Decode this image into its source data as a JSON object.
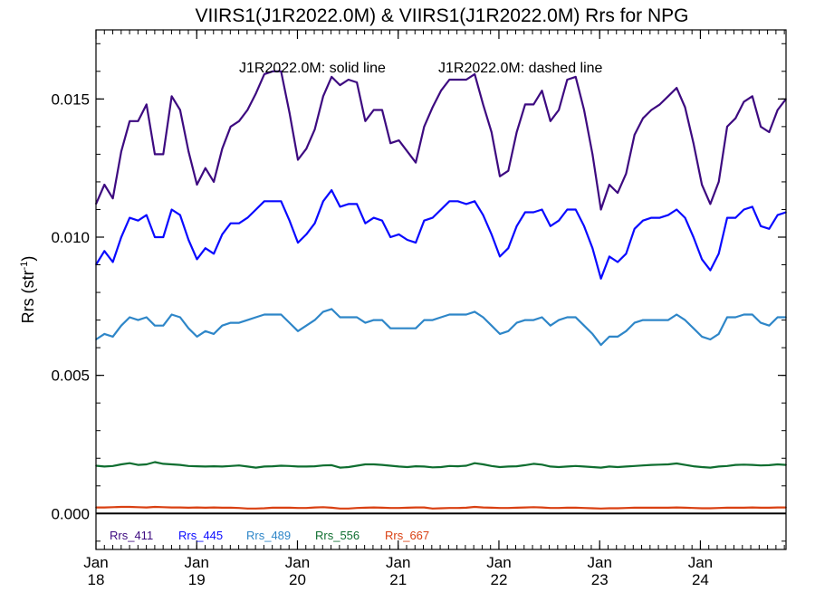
{
  "chart_data": {
    "type": "line",
    "title": "VIIRS1(J1R2022.0M) & VIIRS1(J1R2022.0M)  Rrs for NPG",
    "annotation_solid": "J1R2022.0M: solid line",
    "annotation_dashed": "J1R2022.0M: dashed line",
    "ylabel": "Rrs (str",
    "ylabel_sup": "-1",
    "ylabel_close": ")",
    "ylim": [
      -0.0013,
      0.0175
    ],
    "xlim": [
      2018.0,
      2024.85
    ],
    "yticks": [
      0.0,
      0.005,
      0.01,
      0.015
    ],
    "ytick_labels": [
      "0.000",
      "0.005",
      "0.010",
      "0.015"
    ],
    "xticks": [
      {
        "x": 2018,
        "month": "Jan",
        "year": "18"
      },
      {
        "x": 2019,
        "month": "Jan",
        "year": "19"
      },
      {
        "x": 2020,
        "month": "Jan",
        "year": "20"
      },
      {
        "x": 2021,
        "month": "Jan",
        "year": "21"
      },
      {
        "x": 2022,
        "month": "Jan",
        "year": "22"
      },
      {
        "x": 2023,
        "month": "Jan",
        "year": "23"
      },
      {
        "x": 2024,
        "month": "Jan",
        "year": "24"
      }
    ],
    "reference_line": 0.0,
    "grid": false,
    "legend_position": "bottom-left",
    "series": [
      {
        "name": "Rrs_411",
        "color": "#3d0a80",
        "values": [
          0.0112,
          0.0119,
          0.0114,
          0.0131,
          0.0142,
          0.0142,
          0.0148,
          0.013,
          0.013,
          0.0151,
          0.0146,
          0.0131,
          0.0119,
          0.0125,
          0.012,
          0.0132,
          0.014,
          0.0142,
          0.0146,
          0.0152,
          0.0159,
          0.016,
          0.016,
          0.0145,
          0.0128,
          0.0132,
          0.0139,
          0.0151,
          0.0158,
          0.0155,
          0.0157,
          0.0156,
          0.0142,
          0.0146,
          0.0146,
          0.0134,
          0.0135,
          0.0131,
          0.0127,
          0.014,
          0.0147,
          0.0153,
          0.0157,
          0.0157,
          0.0157,
          0.0159,
          0.0148,
          0.0138,
          0.0122,
          0.0124,
          0.0138,
          0.0148,
          0.0148,
          0.0153,
          0.0142,
          0.0146,
          0.0157,
          0.0158,
          0.0146,
          0.013,
          0.011,
          0.0119,
          0.0116,
          0.0123,
          0.0137,
          0.0143,
          0.0146,
          0.0148,
          0.0151,
          0.0154,
          0.0147,
          0.0134,
          0.0119,
          0.0112,
          0.012,
          0.014,
          0.0143,
          0.0149,
          0.0151,
          0.014,
          0.0138,
          0.0146,
          0.015
        ]
      },
      {
        "name": "Rrs_445",
        "color": "#0a0aff",
        "values": [
          0.009,
          0.0095,
          0.0091,
          0.01,
          0.0107,
          0.0106,
          0.0108,
          0.01,
          0.01,
          0.011,
          0.0108,
          0.0099,
          0.0092,
          0.0096,
          0.0094,
          0.0101,
          0.0105,
          0.0105,
          0.0107,
          0.011,
          0.0113,
          0.0113,
          0.0113,
          0.0106,
          0.0098,
          0.0101,
          0.0105,
          0.0113,
          0.0117,
          0.0111,
          0.0112,
          0.0112,
          0.0105,
          0.0107,
          0.0106,
          0.01,
          0.0101,
          0.0099,
          0.0098,
          0.0106,
          0.0107,
          0.011,
          0.0113,
          0.0113,
          0.0112,
          0.0113,
          0.0108,
          0.0101,
          0.0093,
          0.0096,
          0.0104,
          0.0109,
          0.0109,
          0.011,
          0.0104,
          0.0106,
          0.011,
          0.011,
          0.0104,
          0.0096,
          0.0085,
          0.0093,
          0.0091,
          0.0094,
          0.0103,
          0.0106,
          0.0107,
          0.0107,
          0.0108,
          0.011,
          0.0107,
          0.01,
          0.0092,
          0.0088,
          0.0094,
          0.0107,
          0.0107,
          0.011,
          0.0111,
          0.0104,
          0.0103,
          0.0108,
          0.0109
        ]
      },
      {
        "name": "Rrs_489",
        "color": "#2e86c8",
        "values": [
          0.0063,
          0.0065,
          0.0064,
          0.0068,
          0.0071,
          0.007,
          0.0071,
          0.0068,
          0.0068,
          0.0072,
          0.0071,
          0.0067,
          0.0064,
          0.0066,
          0.0065,
          0.0068,
          0.0069,
          0.0069,
          0.007,
          0.0071,
          0.0072,
          0.0072,
          0.0072,
          0.0069,
          0.0066,
          0.0068,
          0.007,
          0.0073,
          0.0074,
          0.0071,
          0.0071,
          0.0071,
          0.0069,
          0.007,
          0.007,
          0.0067,
          0.0067,
          0.0067,
          0.0067,
          0.007,
          0.007,
          0.0071,
          0.0072,
          0.0072,
          0.0072,
          0.0073,
          0.0071,
          0.0068,
          0.0065,
          0.0066,
          0.0069,
          0.007,
          0.007,
          0.0071,
          0.0068,
          0.007,
          0.0071,
          0.0071,
          0.0068,
          0.0065,
          0.0061,
          0.0064,
          0.0064,
          0.0066,
          0.0069,
          0.007,
          0.007,
          0.007,
          0.007,
          0.0072,
          0.007,
          0.0067,
          0.0064,
          0.0063,
          0.0065,
          0.0071,
          0.0071,
          0.0072,
          0.0072,
          0.0069,
          0.0068,
          0.0071,
          0.0071
        ]
      },
      {
        "name": "Rrs_556",
        "color": "#0f6e30",
        "values": [
          0.00173,
          0.0017,
          0.00172,
          0.00178,
          0.00182,
          0.00176,
          0.00178,
          0.00186,
          0.0018,
          0.00178,
          0.00176,
          0.00172,
          0.00171,
          0.0017,
          0.00171,
          0.0017,
          0.00172,
          0.00174,
          0.0017,
          0.00166,
          0.0017,
          0.00171,
          0.00173,
          0.00172,
          0.0017,
          0.0017,
          0.00171,
          0.00174,
          0.00175,
          0.00166,
          0.00168,
          0.00173,
          0.00178,
          0.00178,
          0.00176,
          0.00173,
          0.0017,
          0.00168,
          0.00171,
          0.0017,
          0.00167,
          0.00168,
          0.00172,
          0.00171,
          0.00173,
          0.00182,
          0.00178,
          0.00172,
          0.00168,
          0.0017,
          0.00171,
          0.00175,
          0.0018,
          0.00177,
          0.0017,
          0.00168,
          0.0017,
          0.00172,
          0.0017,
          0.00168,
          0.00166,
          0.0017,
          0.00168,
          0.0017,
          0.00172,
          0.00174,
          0.00176,
          0.00177,
          0.00178,
          0.00181,
          0.00176,
          0.00171,
          0.00168,
          0.00166,
          0.0017,
          0.00172,
          0.00176,
          0.00177,
          0.00176,
          0.00174,
          0.00175,
          0.00178,
          0.00176
        ]
      },
      {
        "name": "Rrs_667",
        "color": "#d94012",
        "values": [
          0.00022,
          0.00022,
          0.00023,
          0.00024,
          0.00024,
          0.00023,
          0.00022,
          0.00024,
          0.00023,
          0.00022,
          0.00022,
          0.00021,
          0.00022,
          0.00021,
          0.00022,
          0.00021,
          0.00021,
          0.0002,
          0.00018,
          0.00018,
          0.00019,
          0.00021,
          0.00021,
          0.00021,
          0.0002,
          0.0002,
          0.00022,
          0.00023,
          0.00021,
          0.00018,
          0.00018,
          0.0002,
          0.00021,
          0.00022,
          0.00021,
          0.0002,
          0.0002,
          0.00021,
          0.00022,
          0.00022,
          0.00018,
          0.00019,
          0.0002,
          0.0002,
          0.00021,
          0.00024,
          0.00022,
          0.00021,
          0.0002,
          0.0002,
          0.00021,
          0.00022,
          0.00023,
          0.00022,
          0.0002,
          0.0002,
          0.00021,
          0.00021,
          0.0002,
          0.00019,
          0.00018,
          0.00019,
          0.00019,
          0.0002,
          0.00021,
          0.00021,
          0.00021,
          0.00021,
          0.00021,
          0.00022,
          0.00021,
          0.0002,
          0.00019,
          0.00019,
          0.0002,
          0.00021,
          0.00021,
          0.00021,
          0.00022,
          0.00021,
          0.00021,
          0.00022,
          0.00022
        ]
      }
    ]
  }
}
